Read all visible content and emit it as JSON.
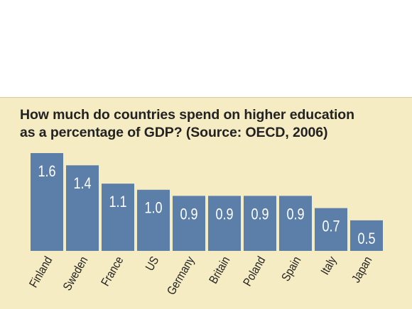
{
  "chart_data": {
    "type": "bar",
    "title_line1": "How much do countries spend on higher education",
    "title_line2": "as a percentage of GDP? (Source: OECD, 2006)",
    "categories": [
      "Finland",
      "Sweden",
      "France",
      "US",
      "Germany",
      "Britain",
      "Poland",
      "Spain",
      "Italy",
      "Japan"
    ],
    "values": [
      1.6,
      1.4,
      1.1,
      1.0,
      0.9,
      0.9,
      0.9,
      0.9,
      0.7,
      0.5
    ],
    "data_labels": [
      "1.6",
      "1.4",
      "1.1",
      "1.0",
      "0.9",
      "0.9",
      "0.9",
      "0.9",
      "0.7",
      "0.5"
    ],
    "ylim": [
      0,
      1.6
    ],
    "grid": false,
    "bar_color": "#5b7fa9",
    "background_color": "#f6ecc4"
  }
}
